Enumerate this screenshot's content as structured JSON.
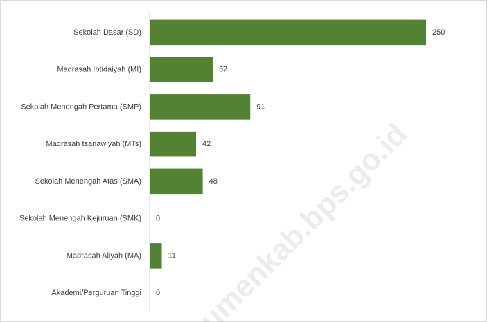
{
  "chart_data": {
    "type": "barh",
    "categories": [
      "Sekolah Dasar (SD)",
      "Madrasah Ibtidaiyah (MI)",
      "Sekolah Menengah Pertama (SMP)",
      "Madrasah tsanawiyah (MTs)",
      "Sekolah Menengah Atas (SMA)",
      "Sekolah Menengah Kejuruan (SMK)",
      "Madrasah Aliyah (MA)",
      "Akademi/Perguruan Tinggi"
    ],
    "values": [
      250,
      57,
      91,
      42,
      48,
      0,
      11,
      0
    ],
    "color": "#548235",
    "watermark": "umenkab.bps.go.id"
  }
}
